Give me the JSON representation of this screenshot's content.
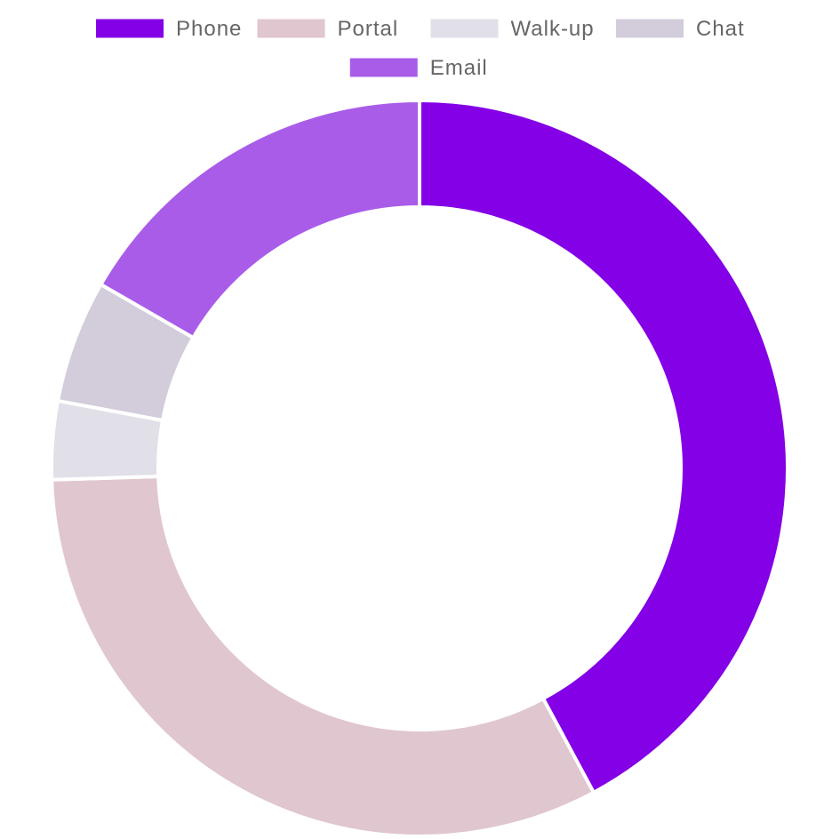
{
  "chart_data": {
    "type": "doughnut",
    "categories": [
      "Phone",
      "Portal",
      "Walk-up",
      "Chat",
      "Email"
    ],
    "values": [
      43,
      33,
      3.5,
      5.5,
      17
    ],
    "colors": [
      "#8400e6",
      "#e0c6ce",
      "#e1dfe8",
      "#d3ccdb",
      "#a95ce8"
    ],
    "legend_position": "top",
    "title": ""
  }
}
